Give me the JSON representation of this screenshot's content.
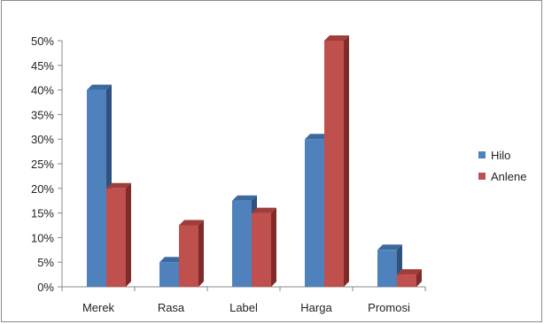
{
  "chart_data": {
    "type": "bar",
    "categories": [
      "Merek",
      "Rasa",
      "Label",
      "Harga",
      "Promosi"
    ],
    "series": [
      {
        "name": "Hilo",
        "values": [
          40,
          5,
          17.5,
          30,
          7.5
        ],
        "color": "#4f81bd",
        "side_color": "#2f527e",
        "top_color": "#3d6a9e"
      },
      {
        "name": "Anlene",
        "values": [
          20,
          12.5,
          15,
          50,
          2.5
        ],
        "color": "#c0504d",
        "side_color": "#7f2b29",
        "top_color": "#9e3d3a"
      }
    ],
    "yticks": [
      "0%",
      "5%",
      "10%",
      "15%",
      "20%",
      "25%",
      "30%",
      "35%",
      "40%",
      "45%",
      "50%"
    ],
    "ylim": [
      0,
      50
    ],
    "legend_position": "right",
    "grid": false,
    "three_d": true
  }
}
